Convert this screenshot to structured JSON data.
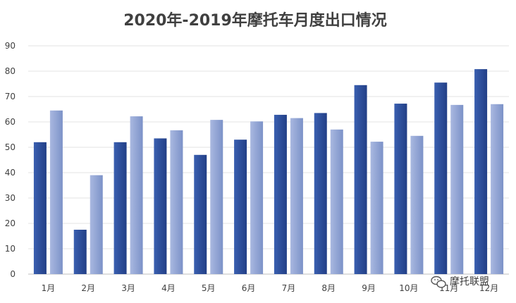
{
  "chart_data": {
    "type": "bar",
    "title": "2020年-2019年摩托车月度出口情况",
    "xlabel": "",
    "ylabel": "",
    "categories": [
      "1月",
      "2月",
      "3月",
      "4月",
      "5月",
      "6月",
      "7月",
      "8月",
      "9月",
      "10月",
      "11月",
      "12月"
    ],
    "series": [
      {
        "values": [
          52,
          17.5,
          52,
          53.5,
          47,
          53,
          62.8,
          63.5,
          74.5,
          67.2,
          75.5,
          80.8
        ]
      },
      {
        "values": [
          64.5,
          39,
          62.2,
          56.7,
          60.8,
          60.2,
          61.5,
          57,
          52.2,
          54.5,
          66.7,
          67
        ]
      }
    ],
    "ylim": [
      0,
      90
    ],
    "yticks": [
      0,
      10,
      20,
      30,
      40,
      50,
      60,
      70,
      80,
      90
    ],
    "grid": true,
    "legend": "none"
  },
  "series_colors": [
    "#2e4f9e",
    "#8fa2d4"
  ],
  "watermark": {
    "text": "摩托联盟",
    "icon": "wechat-icon"
  }
}
